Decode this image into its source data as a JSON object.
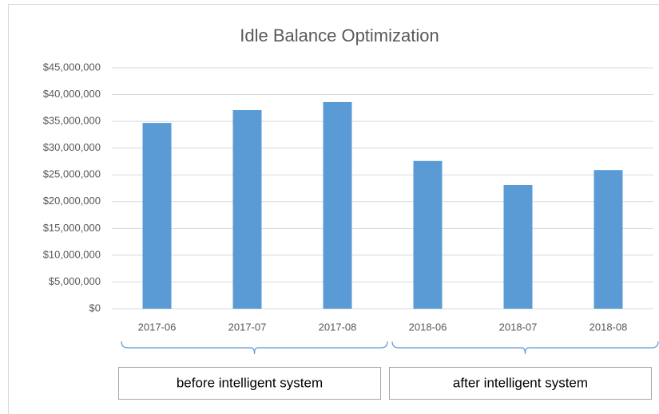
{
  "chart_data": {
    "type": "bar",
    "title": "Idle Balance Optimization",
    "categories": [
      "2017-06",
      "2017-07",
      "2017-08",
      "2018-06",
      "2018-07",
      "2018-08"
    ],
    "values": [
      34700000,
      37100000,
      38600000,
      27600000,
      23100000,
      25900000
    ],
    "color": "#5b9bd5",
    "ylim": [
      0,
      45000000
    ],
    "yticks": [
      {
        "value": 0,
        "label": "$0"
      },
      {
        "value": 5000000,
        "label": "$5,000,000"
      },
      {
        "value": 10000000,
        "label": "$10,000,000"
      },
      {
        "value": 15000000,
        "label": "$15,000,000"
      },
      {
        "value": 20000000,
        "label": "$20,000,000"
      },
      {
        "value": 25000000,
        "label": "$25,000,000"
      },
      {
        "value": 30000000,
        "label": "$30,000,000"
      },
      {
        "value": 35000000,
        "label": "$35,000,000"
      },
      {
        "value": 40000000,
        "label": "$40,000,000"
      },
      {
        "value": 45000000,
        "label": "$45,000,000"
      }
    ],
    "grid": true,
    "group_labels": [
      "before intelligent system",
      "after intelligent system"
    ]
  }
}
